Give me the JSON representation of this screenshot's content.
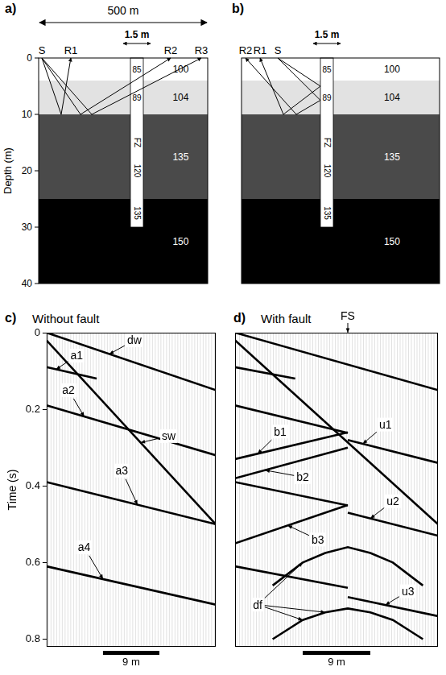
{
  "models": {
    "depth_axis": {
      "title": "Depth (m)",
      "lim": [
        0,
        40
      ],
      "ticks": [
        0,
        10,
        20,
        30,
        40
      ]
    },
    "panels": [
      {
        "letter": "a)",
        "width_label": "500 m",
        "fz_width_label": "1.5 m",
        "stations": [
          "S",
          "R1",
          "R2",
          "R3"
        ],
        "fz_bottom": 30,
        "layers": [
          {
            "top": 0,
            "bottom": 4,
            "velocity": 100,
            "fz_velocity": 85
          },
          {
            "top": 4,
            "bottom": 10,
            "velocity": 104,
            "fz_velocity": 89
          },
          {
            "top": 10,
            "bottom": 25,
            "velocity": 135,
            "fz_label": "FZ",
            "fz_velocity": 120
          },
          {
            "top": 25,
            "bottom": 40,
            "velocity": 150,
            "fz_velocity": 135
          }
        ]
      },
      {
        "letter": "b)",
        "fz_width_label": "1.5 m",
        "stations": [
          "R2",
          "R1",
          "S"
        ],
        "fz_bottom": 30,
        "layers": [
          {
            "top": 0,
            "bottom": 4,
            "velocity": 100,
            "fz_velocity": 85
          },
          {
            "top": 4,
            "bottom": 10,
            "velocity": 104,
            "fz_velocity": 89
          },
          {
            "top": 10,
            "bottom": 25,
            "velocity": 135,
            "fz_label": "FZ",
            "fz_velocity": 120
          },
          {
            "top": 25,
            "bottom": 40,
            "velocity": 150,
            "fz_velocity": 135
          }
        ]
      }
    ]
  },
  "chart_data": [
    {
      "type": "line",
      "letter": "c)",
      "title": "Without fault",
      "y_label": "Time (s)",
      "xlim": [
        0,
        27
      ],
      "ylim": [
        0,
        0.82
      ],
      "yticks": [
        0,
        0.2,
        0.4,
        0.6,
        0.8
      ],
      "tick_labels": "y",
      "scale_bar": {
        "value": 9,
        "label": "9 m"
      },
      "events": [
        [
          [
            0,
            0
          ],
          [
            27,
            0.15
          ]
        ],
        [
          [
            0,
            0.02
          ],
          [
            27,
            0.5
          ]
        ],
        [
          [
            0,
            0.09
          ],
          [
            8,
            0.12
          ]
        ],
        [
          [
            0,
            0.19
          ],
          [
            27,
            0.32
          ]
        ],
        [
          [
            0,
            0.39
          ],
          [
            27,
            0.5
          ]
        ],
        [
          [
            0,
            0.61
          ],
          [
            27,
            0.71
          ]
        ]
      ],
      "annotations": [
        {
          "text": "a1",
          "at": [
            4.8,
            0.06
          ],
          "to": [
            [
              1.5,
              0.096
            ]
          ]
        },
        {
          "text": "dw",
          "at": [
            14,
            0.02
          ],
          "to": [
            [
              10,
              0.056
            ]
          ]
        },
        {
          "text": "sw",
          "at": [
            19.5,
            0.27
          ],
          "to": [
            [
              15,
              0.287
            ]
          ]
        },
        {
          "text": "a2",
          "at": [
            3.5,
            0.15
          ],
          "to": [
            [
              6,
              0.219
            ]
          ]
        },
        {
          "text": "a3",
          "at": [
            12,
            0.36
          ],
          "to": [
            [
              14.5,
              0.449
            ]
          ]
        },
        {
          "text": "a4",
          "at": [
            6,
            0.56
          ],
          "to": [
            [
              9,
              0.643
            ]
          ]
        }
      ]
    },
    {
      "type": "line",
      "letter": "d)",
      "title": "With fault",
      "xlim": [
        0,
        27
      ],
      "ylim": [
        0,
        0.82
      ],
      "tick_labels": false,
      "scale_bar": {
        "value": 9,
        "label": "9 m"
      },
      "fault_surface": {
        "text": "FS",
        "x": 15
      },
      "events": [
        [
          [
            0,
            0
          ],
          [
            27,
            0.15
          ]
        ],
        [
          [
            0,
            0.02
          ],
          [
            27,
            0.5
          ]
        ],
        [
          [
            0,
            0.09
          ],
          [
            8,
            0.12
          ]
        ],
        [
          [
            0,
            0.19
          ],
          [
            15,
            0.262
          ]
        ],
        [
          [
            15,
            0.28
          ],
          [
            27,
            0.34
          ]
        ],
        [
          [
            0,
            0.39
          ],
          [
            15,
            0.451
          ]
        ],
        [
          [
            15,
            0.47
          ],
          [
            27,
            0.53
          ]
        ],
        [
          [
            0,
            0.61
          ],
          [
            15,
            0.666
          ]
        ],
        [
          [
            15,
            0.69
          ],
          [
            27,
            0.74
          ]
        ],
        [
          [
            15,
            0.26
          ],
          [
            0,
            0.33
          ]
        ],
        [
          [
            15,
            0.3
          ],
          [
            0,
            0.38
          ]
        ],
        [
          [
            15,
            0.45
          ],
          [
            0,
            0.55
          ]
        ],
        [
          [
            5,
            0.66
          ],
          [
            9,
            0.6
          ],
          [
            12,
            0.575
          ],
          [
            15,
            0.56
          ],
          [
            18,
            0.575
          ],
          [
            21,
            0.6
          ],
          [
            25,
            0.66
          ]
        ],
        [
          [
            5,
            0.8
          ],
          [
            9,
            0.75
          ],
          [
            12,
            0.73
          ],
          [
            15,
            0.72
          ],
          [
            18,
            0.73
          ],
          [
            21,
            0.75
          ],
          [
            25,
            0.8
          ]
        ]
      ],
      "annotations": [
        {
          "text": "u1",
          "at": [
            20,
            0.24
          ],
          "to": [
            [
              17,
              0.29
            ]
          ]
        },
        {
          "text": "u2",
          "at": [
            21,
            0.44
          ],
          "to": [
            [
              18,
              0.485
            ]
          ]
        },
        {
          "text": "u3",
          "at": [
            23,
            0.675
          ],
          "to": [
            [
              20,
              0.711
            ]
          ]
        },
        {
          "text": "b1",
          "at": [
            6,
            0.258
          ],
          "to": [
            [
              3,
              0.316
            ]
          ]
        },
        {
          "text": "b2",
          "at": [
            9,
            0.377
          ],
          "to": [
            [
              4,
              0.359
            ]
          ]
        },
        {
          "text": "b3",
          "at": [
            11,
            0.54
          ],
          "to": [
            [
              7,
              0.503
            ]
          ]
        },
        {
          "text": "df",
          "at": [
            3,
            0.71
          ],
          "to": [
            [
              9,
              0.6
            ],
            [
              9,
              0.75
            ],
            [
              12,
              0.73
            ]
          ]
        }
      ]
    }
  ]
}
